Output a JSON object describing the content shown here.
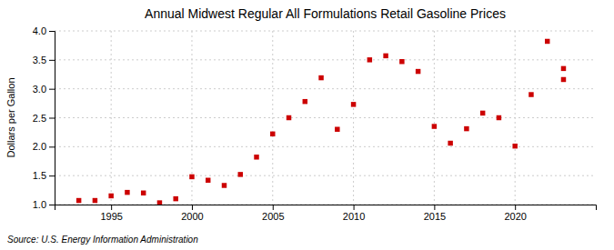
{
  "chart_data": {
    "type": "scatter",
    "title": "Annual Midwest Regular All Formulations Retail Gasoline Prices",
    "ylabel": "Dollars per Gallon",
    "annotations": [
      "Source: U.S. Energy Information Administration"
    ],
    "x": [
      1993,
      1994,
      1995,
      1996,
      1997,
      1998,
      1999,
      2000,
      2001,
      2002,
      2003,
      2004,
      2005,
      2006,
      2007,
      2008,
      2009,
      2010,
      2011,
      2012,
      2013,
      2014,
      2015,
      2016,
      2017,
      2018,
      2019,
      2020,
      2021,
      2022,
      2023,
      2023
    ],
    "values": [
      1.07,
      1.07,
      1.15,
      1.21,
      1.2,
      1.03,
      1.1,
      1.48,
      1.42,
      1.33,
      1.52,
      1.82,
      2.22,
      2.5,
      2.78,
      3.19,
      2.3,
      2.73,
      3.5,
      3.57,
      3.47,
      3.3,
      2.35,
      2.06,
      2.31,
      2.58,
      2.5,
      2.01,
      2.9,
      3.82,
      3.35,
      3.16
    ],
    "color": "#cc0000",
    "marker": "square",
    "xlim": [
      1991.5,
      2025
    ],
    "ylim": [
      1.0,
      4.0
    ],
    "xticks": [
      1995,
      2000,
      2005,
      2010,
      2015,
      2020
    ],
    "yticks": [
      {
        "value": 1.0,
        "label": "1.0"
      },
      1.5,
      {
        "value": 2.0,
        "label": "2.0"
      },
      2.5,
      {
        "value": 3.0,
        "label": "3.0"
      },
      3.5,
      {
        "value": 4.0,
        "label": "4.0"
      }
    ],
    "grid": true
  }
}
